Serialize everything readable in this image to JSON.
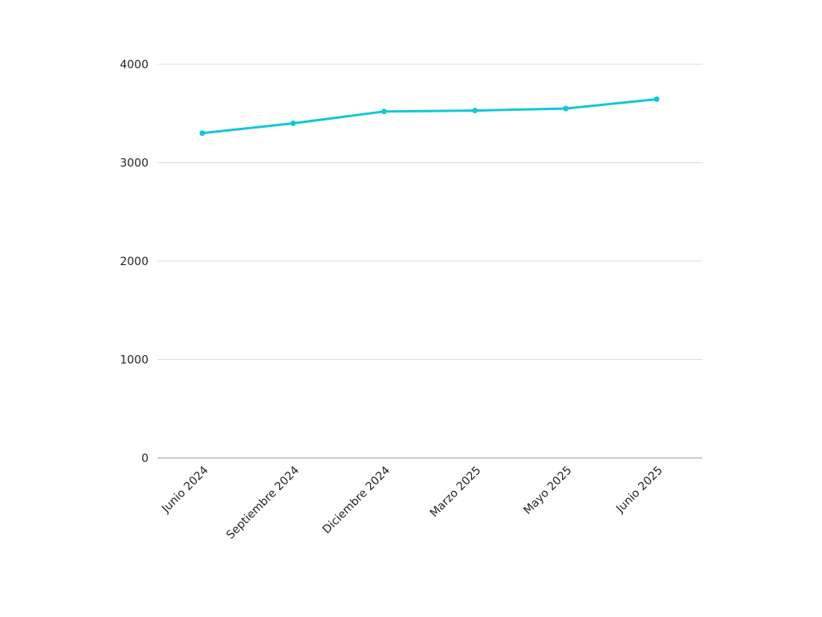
{
  "chart_data": {
    "type": "line",
    "categories": [
      "Junio 2024",
      "Septiembre 2024",
      "Diciembre 2024",
      "Marzo 2025",
      "Mayo 2025",
      "Junio 2025"
    ],
    "series": [
      {
        "values": [
          3300,
          3400,
          3520,
          3530,
          3550,
          3645
        ],
        "color": "#12c7d8"
      }
    ],
    "title": "",
    "xlabel": "",
    "ylabel": "",
    "ylim": [
      0,
      4000
    ],
    "yticks": [
      "0",
      "1000",
      "2000",
      "3000",
      "4000"
    ],
    "grid": true,
    "legend": "none"
  }
}
